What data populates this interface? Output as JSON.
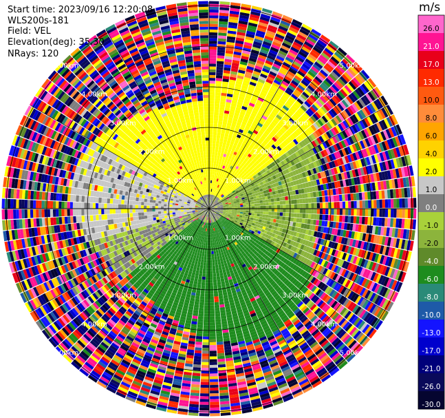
{
  "info": {
    "start_time": "Start time: 2023/09/16 12:20:08",
    "site": "WLS200s-181",
    "field": "Field: VEL",
    "elevation": "Elevation(deg): 35.30",
    "nrays": "NRays: 120"
  },
  "colorbar": {
    "unit": "m/s",
    "bins": [
      {
        "label": "26.0",
        "color": "#ff66cc"
      },
      {
        "label": "21.0",
        "color": "#ff1493"
      },
      {
        "label": "17.0",
        "color": "#e8001a"
      },
      {
        "label": "13.0",
        "color": "#ff2a00"
      },
      {
        "label": "10.0",
        "color": "#ff5a10"
      },
      {
        "label": "8.0",
        "color": "#ff8c3a"
      },
      {
        "label": "6.0",
        "color": "#ffa500"
      },
      {
        "label": "4.0",
        "color": "#ffd200"
      },
      {
        "label": "2.0",
        "color": "#ffff00"
      },
      {
        "label": "1.0",
        "color": "#c7c7c7"
      },
      {
        "label": "0.0",
        "color": "#7f7f7f"
      },
      {
        "label": "-1.0",
        "color": "#a9d13a"
      },
      {
        "label": "-2.0",
        "color": "#8cb43c"
      },
      {
        "label": "-4.0",
        "color": "#5f8a2a"
      },
      {
        "label": "-6.0",
        "color": "#1e8c1e"
      },
      {
        "label": "-8.0",
        "color": "#2a8a78"
      },
      {
        "label": "-10.0",
        "color": "#1e5aa8"
      },
      {
        "label": "-13.0",
        "color": "#1414ff"
      },
      {
        "label": "-17.0",
        "color": "#0000cd"
      },
      {
        "label": "-21.0",
        "color": "#00007a"
      },
      {
        "label": "-26.0",
        "color": "#0a0a5a"
      },
      {
        "label": "-30.0",
        "color": "#050530"
      }
    ]
  },
  "chart_data": {
    "type": "heatmap",
    "plot_kind": "PPI polar radar scan",
    "field": "VEL",
    "units": "m/s",
    "nrays": 120,
    "elevation_deg": 35.3,
    "range_ring_labels": [
      "1.00km",
      "2.00km",
      "3.00km",
      "4.00km",
      "5.00km"
    ],
    "radial_spokes_deg": [
      0,
      30,
      60,
      90,
      120,
      150,
      180,
      210,
      240,
      270,
      300,
      330
    ],
    "color_levels": [
      -30.0,
      -26.0,
      -21.0,
      -17.0,
      -13.0,
      -10.0,
      -8.0,
      -6.0,
      -4.0,
      -2.0,
      -1.0,
      0.0,
      1.0,
      2.0,
      4.0,
      6.0,
      8.0,
      10.0,
      13.0,
      17.0,
      21.0,
      26.0
    ],
    "dominant_pattern": [
      {
        "sector": "north",
        "range_km": [
          0.3,
          3.0
        ],
        "value_m_s": 3.0
      },
      {
        "sector": "west-northwest",
        "range_km": [
          0.3,
          2.5
        ],
        "value_m_s": 1.5
      },
      {
        "sector": "east",
        "range_km": [
          0.2,
          2.0
        ],
        "value_m_s": -1.5
      },
      {
        "sector": "south",
        "range_km": [
          0.3,
          2.5
        ],
        "value_m_s": -5.0
      },
      {
        "sector": "near center",
        "range_km": [
          0.0,
          0.4
        ],
        "value_m_s": 0.0
      },
      {
        "sector": "all",
        "range_km": [
          3.0,
          5.5
        ],
        "value_m_s": "noise"
      }
    ]
  }
}
